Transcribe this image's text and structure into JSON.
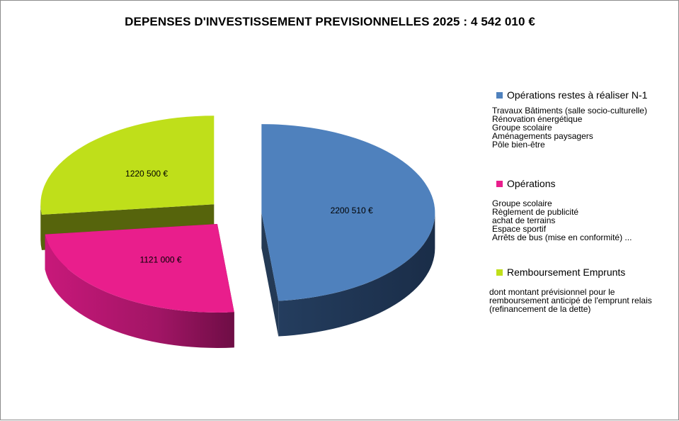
{
  "chart_data": {
    "type": "pie",
    "title": "DEPENSES D'INVESTISSEMENT PREVISIONNELLES 2025 : 4 542 010 €",
    "total": 4542010,
    "slices": [
      {
        "name": "Opérations restes à réaliser N-1",
        "value": 2200510,
        "label": "2200 510 €",
        "color": "#4f81bd"
      },
      {
        "name": "Opérations",
        "value": 1121000,
        "label": "1121 000 €",
        "color": "#e91e8c"
      },
      {
        "name": "Remboursement Emprunts",
        "value": 1220500,
        "label": "1220 500 €",
        "color": "#bfdf1a"
      }
    ],
    "legend_placement": "right"
  },
  "legend": [
    {
      "name": "Opérations restes à réaliser N-1",
      "color": "#4f81bd",
      "notes": [
        "Travaux Bâtiments (salle socio-culturelle)",
        "Rénovation énergétique",
        "Groupe scolaire",
        "Aménagements paysagers",
        "Pôle bien-être"
      ]
    },
    {
      "name": "Opérations",
      "color": "#e91e8c",
      "notes": [
        "Groupe scolaire",
        "Règlement de publicité",
        "achat de terrains",
        "Espace sportif",
        "Arrêts de bus (mise en conformité) ..."
      ]
    },
    {
      "name": "Remboursement Emprunts",
      "color": "#bfdf1a",
      "notes": [
        "dont montant prévisionnel pour le",
        "remboursement anticipé de l'emprunt relais",
        "(refinancement de la dette)"
      ]
    }
  ]
}
